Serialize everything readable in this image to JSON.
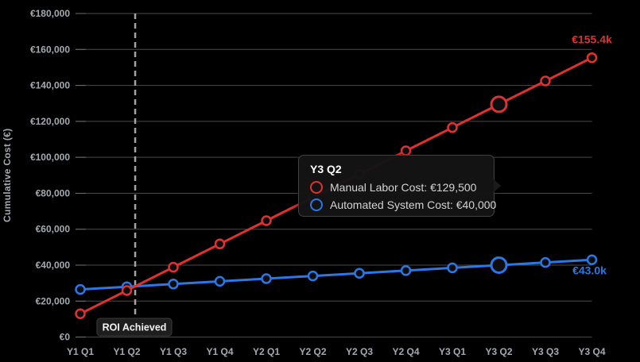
{
  "page": {
    "background_color": "#000000"
  },
  "chart_data": {
    "type": "line",
    "title": "",
    "xlabel": "",
    "ylabel": "Cumulative Cost (€)",
    "grid": true,
    "legend_position": "none",
    "categories": [
      "Y1 Q1",
      "Y1 Q2",
      "Y1 Q3",
      "Y1 Q4",
      "Y2 Q1",
      "Y2 Q2",
      "Y2 Q3",
      "Y2 Q4",
      "Y3 Q1",
      "Y3 Q2",
      "Y3 Q3",
      "Y3 Q4"
    ],
    "y_axis": {
      "min": 0,
      "max": 180000,
      "step": 20000,
      "tick_labels": [
        "€0",
        "€20,000",
        "€40,000",
        "€60,000",
        "€80,000",
        "€100,000",
        "€120,000",
        "€140,000",
        "€160,000",
        "€180,000"
      ]
    },
    "series": [
      {
        "name": "Manual Labor Cost",
        "color": "#e03131",
        "values": [
          12950,
          25900,
          38850,
          51800,
          64750,
          77700,
          90650,
          103600,
          116550,
          129500,
          142450,
          155400
        ],
        "end_label": "€155.4k"
      },
      {
        "name": "Automated System Cost",
        "color": "#2b77e5",
        "values": [
          26500,
          28000,
          29500,
          31000,
          32500,
          34000,
          35500,
          37000,
          38500,
          40000,
          41500,
          43000
        ],
        "end_label": "€43.0k"
      }
    ],
    "highlighted_index": 9,
    "roi_marker": {
      "label": "ROI Achieved",
      "x_index": 1.18
    }
  },
  "tooltip": {
    "title": "Y3 Q2",
    "rows": [
      {
        "series": "Manual Labor Cost",
        "color": "#e03131",
        "text": "Manual Labor Cost: €129,500"
      },
      {
        "series": "Automated System Cost",
        "color": "#2b77e5",
        "text": "Automated System Cost: €40,000"
      }
    ]
  },
  "colors": {
    "gridline": "#4a4a4a",
    "tick": "#6e6e6e",
    "axis_text": "#a4a9b0",
    "roi_line": "#a3a3a3",
    "point_fill": "#0d0d0d"
  }
}
